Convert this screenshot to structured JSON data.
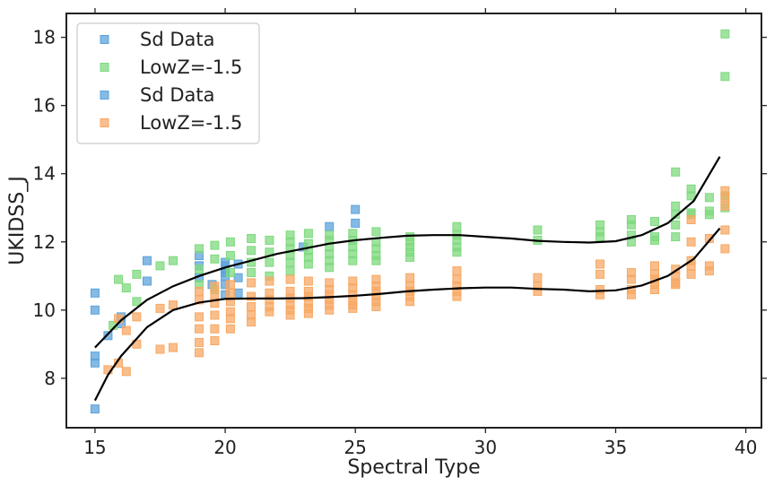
{
  "chart_data": {
    "type": "scatter",
    "xlabel": "Spectral Type",
    "ylabel": "UKIDSS_J",
    "xlim": [
      13.9,
      40.6
    ],
    "ylim": [
      6.55,
      18.7
    ],
    "xticks": [
      15,
      20,
      25,
      30,
      35,
      40
    ],
    "yticks": [
      8,
      10,
      12,
      14,
      16,
      18
    ],
    "grid": false,
    "legend": {
      "placement": "top-left",
      "entries": [
        {
          "label": "Sd Data",
          "color": "#5ca3dc"
        },
        {
          "label": "LowZ=-1.5",
          "color": "#7fd97f"
        },
        {
          "label": "Sd Data",
          "color": "#5ca3dc"
        },
        {
          "label": "LowZ=-1.5",
          "color": "#f7a864"
        }
      ]
    },
    "colors": {
      "sd": "#5ca3dc",
      "green": "#7fd97f",
      "orange": "#f7a864",
      "line": "#000000"
    },
    "series": [
      {
        "name": "Sd Data",
        "color": "#5ca3dc",
        "points": [
          [
            15,
            10.5
          ],
          [
            15,
            10.0
          ],
          [
            15,
            8.65
          ],
          [
            15,
            8.45
          ],
          [
            15,
            7.1
          ],
          [
            15.5,
            9.25
          ],
          [
            16,
            9.8
          ],
          [
            16,
            9.6
          ],
          [
            17,
            11.45
          ],
          [
            17,
            10.85
          ],
          [
            19,
            11.6
          ],
          [
            19,
            11.3
          ],
          [
            19,
            10.95
          ],
          [
            19.5,
            10.75
          ],
          [
            20,
            11.4
          ],
          [
            20,
            11.3
          ],
          [
            20,
            11.2
          ],
          [
            20,
            11.1
          ],
          [
            20,
            11.0
          ],
          [
            20,
            10.75
          ],
          [
            20,
            10.45
          ],
          [
            20.5,
            11.35
          ],
          [
            20.5,
            10.95
          ],
          [
            20.5,
            10.5
          ],
          [
            23,
            11.85
          ],
          [
            24,
            12.45
          ],
          [
            25,
            12.95
          ],
          [
            25,
            12.55
          ]
        ]
      },
      {
        "name": "LowZ=-1.5",
        "color": "#7fd97f",
        "points": [
          [
            15.7,
            9.55
          ],
          [
            15.9,
            10.9
          ],
          [
            16.2,
            10.65
          ],
          [
            16.6,
            11.05
          ],
          [
            16.6,
            10.25
          ],
          [
            17.5,
            11.3
          ],
          [
            18,
            11.45
          ],
          [
            19,
            11.8
          ],
          [
            19,
            11.2
          ],
          [
            19,
            10.75
          ],
          [
            19.6,
            11.9
          ],
          [
            19.6,
            11.5
          ],
          [
            19.6,
            10.6
          ],
          [
            20.2,
            12.0
          ],
          [
            20.2,
            11.6
          ],
          [
            20.2,
            11.1
          ],
          [
            21,
            12.1
          ],
          [
            21,
            11.75
          ],
          [
            21,
            11.4
          ],
          [
            21,
            11.1
          ],
          [
            21.7,
            12.05
          ],
          [
            21.7,
            11.7
          ],
          [
            21.7,
            11.4
          ],
          [
            21.7,
            11.0
          ],
          [
            22.5,
            12.2
          ],
          [
            22.5,
            12.0
          ],
          [
            22.5,
            11.8
          ],
          [
            22.5,
            11.6
          ],
          [
            22.5,
            11.4
          ],
          [
            22.5,
            11.15
          ],
          [
            23.2,
            12.25
          ],
          [
            23.2,
            11.95
          ],
          [
            23.2,
            11.75
          ],
          [
            23.2,
            11.55
          ],
          [
            23.2,
            11.35
          ],
          [
            24,
            12.2
          ],
          [
            24,
            12.05
          ],
          [
            24,
            11.85
          ],
          [
            24,
            11.65
          ],
          [
            24,
            11.45
          ],
          [
            24,
            11.25
          ],
          [
            24.9,
            12.25
          ],
          [
            24.9,
            12.05
          ],
          [
            24.9,
            11.85
          ],
          [
            24.9,
            11.65
          ],
          [
            24.9,
            11.45
          ],
          [
            25.8,
            12.3
          ],
          [
            25.8,
            12.0
          ],
          [
            25.8,
            11.8
          ],
          [
            25.8,
            11.6
          ],
          [
            25.8,
            11.45
          ],
          [
            27.1,
            12.15
          ],
          [
            27.1,
            12.0
          ],
          [
            27.1,
            11.85
          ],
          [
            27.1,
            11.7
          ],
          [
            27.1,
            11.55
          ],
          [
            28.9,
            12.45
          ],
          [
            28.9,
            12.2
          ],
          [
            28.9,
            12.05
          ],
          [
            28.9,
            11.85
          ],
          [
            28.9,
            11.7
          ],
          [
            32,
            12.35
          ],
          [
            32,
            12.05
          ],
          [
            34.4,
            12.5
          ],
          [
            34.4,
            12.3
          ],
          [
            34.4,
            12.15
          ],
          [
            35.6,
            12.65
          ],
          [
            35.6,
            12.5
          ],
          [
            35.6,
            12.2
          ],
          [
            35.6,
            12.0
          ],
          [
            36.5,
            12.6
          ],
          [
            36.5,
            12.15
          ],
          [
            36.5,
            12.05
          ],
          [
            37.3,
            14.05
          ],
          [
            37.3,
            13.05
          ],
          [
            37.3,
            12.8
          ],
          [
            37.3,
            12.5
          ],
          [
            37.3,
            12.15
          ],
          [
            37.9,
            13.55
          ],
          [
            37.9,
            13.35
          ],
          [
            37.9,
            12.85
          ],
          [
            37.9,
            12.8
          ],
          [
            38.6,
            13.3
          ],
          [
            38.6,
            12.9
          ],
          [
            38.6,
            12.8
          ],
          [
            39.2,
            18.1
          ],
          [
            39.2,
            16.85
          ],
          [
            39.2,
            13.35
          ],
          [
            39.2,
            13.0
          ]
        ]
      },
      {
        "name": "LowZ=-1.5",
        "color": "#f7a864",
        "points": [
          [
            15.5,
            8.25
          ],
          [
            15.9,
            9.75
          ],
          [
            15.9,
            8.45
          ],
          [
            16.2,
            9.4
          ],
          [
            16.2,
            8.2
          ],
          [
            16.6,
            9.8
          ],
          [
            16.6,
            9.0
          ],
          [
            17.5,
            10.05
          ],
          [
            17.5,
            8.85
          ],
          [
            18,
            10.15
          ],
          [
            18,
            8.9
          ],
          [
            19,
            10.55
          ],
          [
            19,
            10.3
          ],
          [
            19,
            9.8
          ],
          [
            19,
            9.45
          ],
          [
            19,
            9.05
          ],
          [
            19,
            8.75
          ],
          [
            19.6,
            10.7
          ],
          [
            19.6,
            10.45
          ],
          [
            19.6,
            10.2
          ],
          [
            19.6,
            9.85
          ],
          [
            19.6,
            9.45
          ],
          [
            19.6,
            9.1
          ],
          [
            20.2,
            10.75
          ],
          [
            20.2,
            10.5
          ],
          [
            20.2,
            10.25
          ],
          [
            20.2,
            9.95
          ],
          [
            20.2,
            9.75
          ],
          [
            20.2,
            9.45
          ],
          [
            21,
            10.8
          ],
          [
            21,
            10.4
          ],
          [
            21,
            10.1
          ],
          [
            21,
            9.85
          ],
          [
            21,
            9.65
          ],
          [
            21.7,
            10.85
          ],
          [
            21.7,
            10.5
          ],
          [
            21.7,
            10.3
          ],
          [
            21.7,
            10.1
          ],
          [
            21.7,
            9.95
          ],
          [
            22.5,
            10.9
          ],
          [
            22.5,
            10.55
          ],
          [
            22.5,
            10.35
          ],
          [
            22.5,
            10.15
          ],
          [
            22.5,
            10.0
          ],
          [
            22.5,
            9.85
          ],
          [
            23.2,
            10.85
          ],
          [
            23.2,
            10.55
          ],
          [
            23.2,
            10.4
          ],
          [
            23.2,
            10.2
          ],
          [
            23.2,
            10.05
          ],
          [
            23.2,
            9.9
          ],
          [
            24,
            10.8
          ],
          [
            24,
            10.6
          ],
          [
            24,
            10.45
          ],
          [
            24,
            10.3
          ],
          [
            24,
            10.15
          ],
          [
            24,
            10.0
          ],
          [
            24.9,
            10.85
          ],
          [
            24.9,
            10.65
          ],
          [
            24.9,
            10.45
          ],
          [
            24.9,
            10.3
          ],
          [
            24.9,
            10.15
          ],
          [
            24.9,
            10.05
          ],
          [
            25.8,
            10.9
          ],
          [
            25.8,
            10.7
          ],
          [
            25.8,
            10.55
          ],
          [
            25.8,
            10.4
          ],
          [
            25.8,
            10.25
          ],
          [
            25.8,
            10.1
          ],
          [
            27.1,
            10.95
          ],
          [
            27.1,
            10.7
          ],
          [
            27.1,
            10.55
          ],
          [
            27.1,
            10.4
          ],
          [
            27.1,
            10.25
          ],
          [
            28.9,
            11.15
          ],
          [
            28.9,
            10.9
          ],
          [
            28.9,
            10.7
          ],
          [
            28.9,
            10.55
          ],
          [
            28.9,
            10.4
          ],
          [
            32,
            10.95
          ],
          [
            32,
            10.7
          ],
          [
            32,
            10.55
          ],
          [
            34.4,
            11.35
          ],
          [
            34.4,
            11.05
          ],
          [
            34.4,
            10.6
          ],
          [
            34.4,
            10.45
          ],
          [
            35.6,
            11.1
          ],
          [
            35.6,
            10.9
          ],
          [
            35.6,
            10.6
          ],
          [
            35.6,
            10.45
          ],
          [
            36.5,
            11.3
          ],
          [
            36.5,
            11.05
          ],
          [
            36.5,
            10.9
          ],
          [
            36.5,
            10.75
          ],
          [
            36.5,
            10.6
          ],
          [
            37.3,
            11.2
          ],
          [
            37.3,
            11.0
          ],
          [
            37.3,
            10.8
          ],
          [
            37.3,
            10.75
          ],
          [
            37.9,
            12.65
          ],
          [
            37.9,
            12.0
          ],
          [
            37.9,
            11.45
          ],
          [
            37.9,
            11.3
          ],
          [
            37.9,
            11.05
          ],
          [
            38.6,
            12.1
          ],
          [
            38.6,
            11.3
          ],
          [
            38.6,
            11.15
          ],
          [
            39.2,
            13.5
          ],
          [
            39.2,
            13.3
          ],
          [
            39.2,
            13.05
          ],
          [
            39.2,
            12.35
          ],
          [
            39.2,
            11.8
          ]
        ]
      }
    ],
    "lines": [
      {
        "color": "#000000",
        "points": [
          [
            15,
            8.9
          ],
          [
            16,
            9.7
          ],
          [
            17,
            10.3
          ],
          [
            18,
            10.7
          ],
          [
            19,
            11.0
          ],
          [
            20,
            11.25
          ],
          [
            21,
            11.45
          ],
          [
            22,
            11.65
          ],
          [
            23,
            11.8
          ],
          [
            24,
            11.95
          ],
          [
            25,
            12.05
          ],
          [
            26,
            12.12
          ],
          [
            27,
            12.18
          ],
          [
            28,
            12.2
          ],
          [
            29,
            12.2
          ],
          [
            30,
            12.15
          ],
          [
            31,
            12.1
          ],
          [
            32,
            12.03
          ],
          [
            33,
            12.0
          ],
          [
            34,
            11.98
          ],
          [
            35,
            12.02
          ],
          [
            36,
            12.2
          ],
          [
            37,
            12.55
          ],
          [
            38,
            13.2
          ],
          [
            39,
            14.5
          ]
        ]
      },
      {
        "color": "#000000",
        "points": [
          [
            15,
            7.35
          ],
          [
            15.5,
            8.1
          ],
          [
            16,
            8.65
          ],
          [
            17,
            9.5
          ],
          [
            18,
            10.0
          ],
          [
            19,
            10.22
          ],
          [
            20,
            10.33
          ],
          [
            21,
            10.34
          ],
          [
            22,
            10.34
          ],
          [
            23,
            10.35
          ],
          [
            24,
            10.38
          ],
          [
            25,
            10.42
          ],
          [
            26,
            10.48
          ],
          [
            27,
            10.55
          ],
          [
            28,
            10.6
          ],
          [
            29,
            10.64
          ],
          [
            30,
            10.66
          ],
          [
            31,
            10.66
          ],
          [
            32,
            10.62
          ],
          [
            33,
            10.6
          ],
          [
            34,
            10.55
          ],
          [
            35,
            10.58
          ],
          [
            36,
            10.72
          ],
          [
            37,
            11.0
          ],
          [
            38,
            11.5
          ],
          [
            39,
            12.4
          ]
        ]
      }
    ]
  }
}
